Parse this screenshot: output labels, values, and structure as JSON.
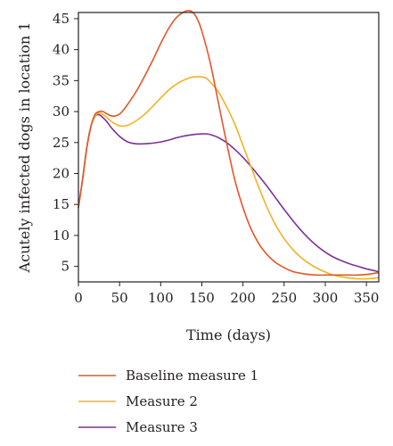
{
  "chart_data": {
    "type": "line",
    "xlabel": "Time (days)",
    "ylabel": "Acutely infected dogs in location 1",
    "xlim": [
      0,
      365
    ],
    "ylim": [
      2.5,
      46
    ],
    "xticks": [
      0,
      50,
      100,
      150,
      200,
      250,
      300,
      350
    ],
    "yticks": [
      5,
      10,
      15,
      20,
      25,
      30,
      35,
      40,
      45
    ],
    "grid": false,
    "legend_position": "bottom",
    "series": [
      {
        "name": "Baseline measure 1",
        "color": "#e0582a",
        "x": [
          0,
          5,
          10,
          15,
          20,
          25,
          30,
          35,
          40,
          45,
          50,
          55,
          60,
          70,
          80,
          90,
          100,
          110,
          120,
          130,
          135,
          140,
          145,
          150,
          160,
          170,
          180,
          190,
          200,
          210,
          220,
          230,
          240,
          250,
          260,
          270,
          280,
          290,
          300,
          310,
          320,
          330,
          340,
          350,
          360,
          365
        ],
        "y": [
          14.5,
          19,
          24,
          27.5,
          29.5,
          30,
          30,
          29.6,
          29.3,
          29.3,
          29.6,
          30.3,
          31.2,
          33.2,
          35.6,
          38.2,
          41,
          43.5,
          45.3,
          46.2,
          46.3,
          45.9,
          44.8,
          43,
          38,
          31.5,
          25,
          19,
          14.5,
          11,
          8.5,
          6.8,
          5.6,
          4.8,
          4.2,
          3.9,
          3.7,
          3.6,
          3.6,
          3.6,
          3.6,
          3.6,
          3.6,
          3.7,
          3.9,
          4.0
        ]
      },
      {
        "name": "Measure 2",
        "color": "#f0b323",
        "x": [
          0,
          5,
          10,
          15,
          20,
          25,
          30,
          35,
          40,
          50,
          60,
          70,
          80,
          90,
          100,
          110,
          120,
          130,
          140,
          150,
          155,
          160,
          170,
          180,
          190,
          200,
          210,
          220,
          230,
          240,
          250,
          260,
          270,
          280,
          290,
          300,
          310,
          320,
          330,
          340,
          350,
          360,
          365
        ],
        "y": [
          14.5,
          19,
          24,
          27.5,
          29.2,
          29.8,
          29.5,
          29,
          28.4,
          27.7,
          27.8,
          28.5,
          29.5,
          30.8,
          32.2,
          33.5,
          34.5,
          35.2,
          35.6,
          35.6,
          35.4,
          34.8,
          33.2,
          30.8,
          28,
          24.5,
          21,
          17.5,
          14.3,
          11.6,
          9.5,
          7.8,
          6.5,
          5.5,
          4.7,
          4.1,
          3.6,
          3.3,
          3.1,
          3.0,
          3.0,
          3.1,
          3.2
        ]
      },
      {
        "name": "Measure 3",
        "color": "#7b3294",
        "x": [
          0,
          5,
          10,
          15,
          20,
          25,
          30,
          35,
          40,
          50,
          60,
          70,
          80,
          90,
          100,
          110,
          120,
          130,
          140,
          150,
          155,
          160,
          170,
          180,
          190,
          200,
          210,
          220,
          230,
          240,
          250,
          260,
          270,
          280,
          290,
          300,
          310,
          320,
          330,
          340,
          350,
          360,
          365
        ],
        "y": [
          14.5,
          19,
          24,
          27.5,
          29.2,
          29.5,
          29,
          28.3,
          27.4,
          26,
          25.1,
          24.8,
          24.8,
          24.9,
          25.1,
          25.4,
          25.8,
          26.1,
          26.3,
          26.4,
          26.4,
          26.3,
          25.8,
          25,
          23.9,
          22.6,
          21.1,
          19.5,
          17.8,
          16,
          14.2,
          12.5,
          10.9,
          9.5,
          8.3,
          7.3,
          6.5,
          5.9,
          5.4,
          5.0,
          4.6,
          4.3,
          4.1
        ]
      }
    ]
  }
}
